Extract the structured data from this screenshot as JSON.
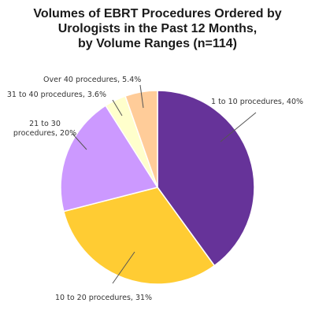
{
  "chart_data": {
    "type": "pie",
    "title_lines": [
      "Volumes of EBRT Procedures Ordered by",
      "Urologists in the Past 12 Months,",
      "by Volume Ranges (n=114)"
    ],
    "slices": [
      {
        "label_lines": [
          "1 to 10 procedures, 40%"
        ],
        "value": 40,
        "color": "#663399"
      },
      {
        "label_lines": [
          "10 to 20 procedures, 31%"
        ],
        "value": 31,
        "color": "#ffcc33"
      },
      {
        "label_lines": [
          "21 to 30",
          "procedures, 20%"
        ],
        "value": 20,
        "color": "#cc99ff"
      },
      {
        "label_lines": [
          "31 to 40 procedures, 3.6%"
        ],
        "value": 3.6,
        "color": "#ffffcc"
      },
      {
        "label_lines": [
          "Over 40 procedures, 5.4%"
        ],
        "value": 5.4,
        "color": "#ffcc99"
      }
    ],
    "legend": "none"
  }
}
